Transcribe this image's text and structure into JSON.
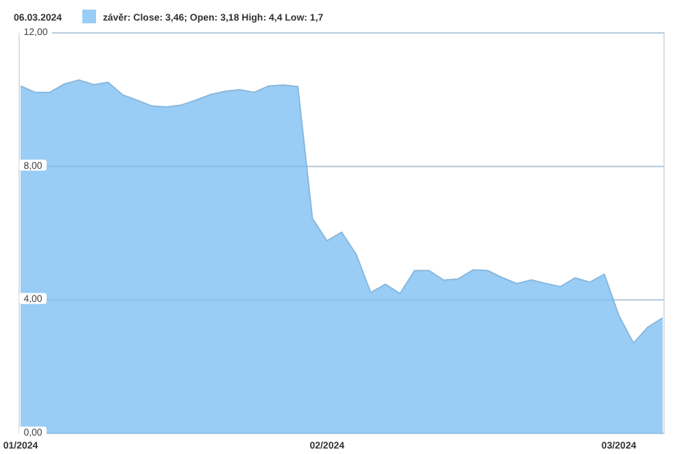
{
  "chart_data": {
    "type": "area",
    "title": "06.03.2024",
    "categories": [
      "01/2024",
      null,
      null,
      null,
      null,
      null,
      null,
      null,
      null,
      null,
      null,
      null,
      null,
      null,
      null,
      null,
      null,
      null,
      null,
      null,
      null,
      "02/2024",
      null,
      null,
      null,
      null,
      null,
      null,
      null,
      null,
      null,
      null,
      null,
      null,
      null,
      null,
      null,
      null,
      null,
      null,
      null,
      "03/2024",
      null,
      null,
      null
    ],
    "series": [
      {
        "name": "závěr: Close: 3,46; Open: 3,18 High: 4,4 Low: 1,7",
        "color": "#99cdf6",
        "values": [
          10.41,
          10.22,
          10.22,
          10.47,
          10.59,
          10.45,
          10.52,
          10.14,
          9.98,
          9.81,
          9.78,
          9.84,
          9.98,
          10.15,
          10.25,
          10.3,
          10.22,
          10.41,
          10.44,
          10.39,
          6.44,
          5.77,
          6.03,
          5.36,
          4.22,
          4.47,
          4.19,
          4.88,
          4.88,
          4.59,
          4.63,
          4.9,
          4.88,
          4.67,
          4.49,
          4.6,
          4.49,
          4.4,
          4.66,
          4.53,
          4.77,
          3.53,
          2.71,
          3.19,
          3.46
        ]
      }
    ],
    "ylim": [
      0,
      12
    ],
    "yticks": [
      {
        "value": 0,
        "label": "0,00"
      },
      {
        "value": 4,
        "label": "4,00"
      },
      {
        "value": 8,
        "label": "8,00"
      },
      {
        "value": 12,
        "label": "12,00"
      }
    ],
    "grid": "y",
    "legend": "top left"
  }
}
